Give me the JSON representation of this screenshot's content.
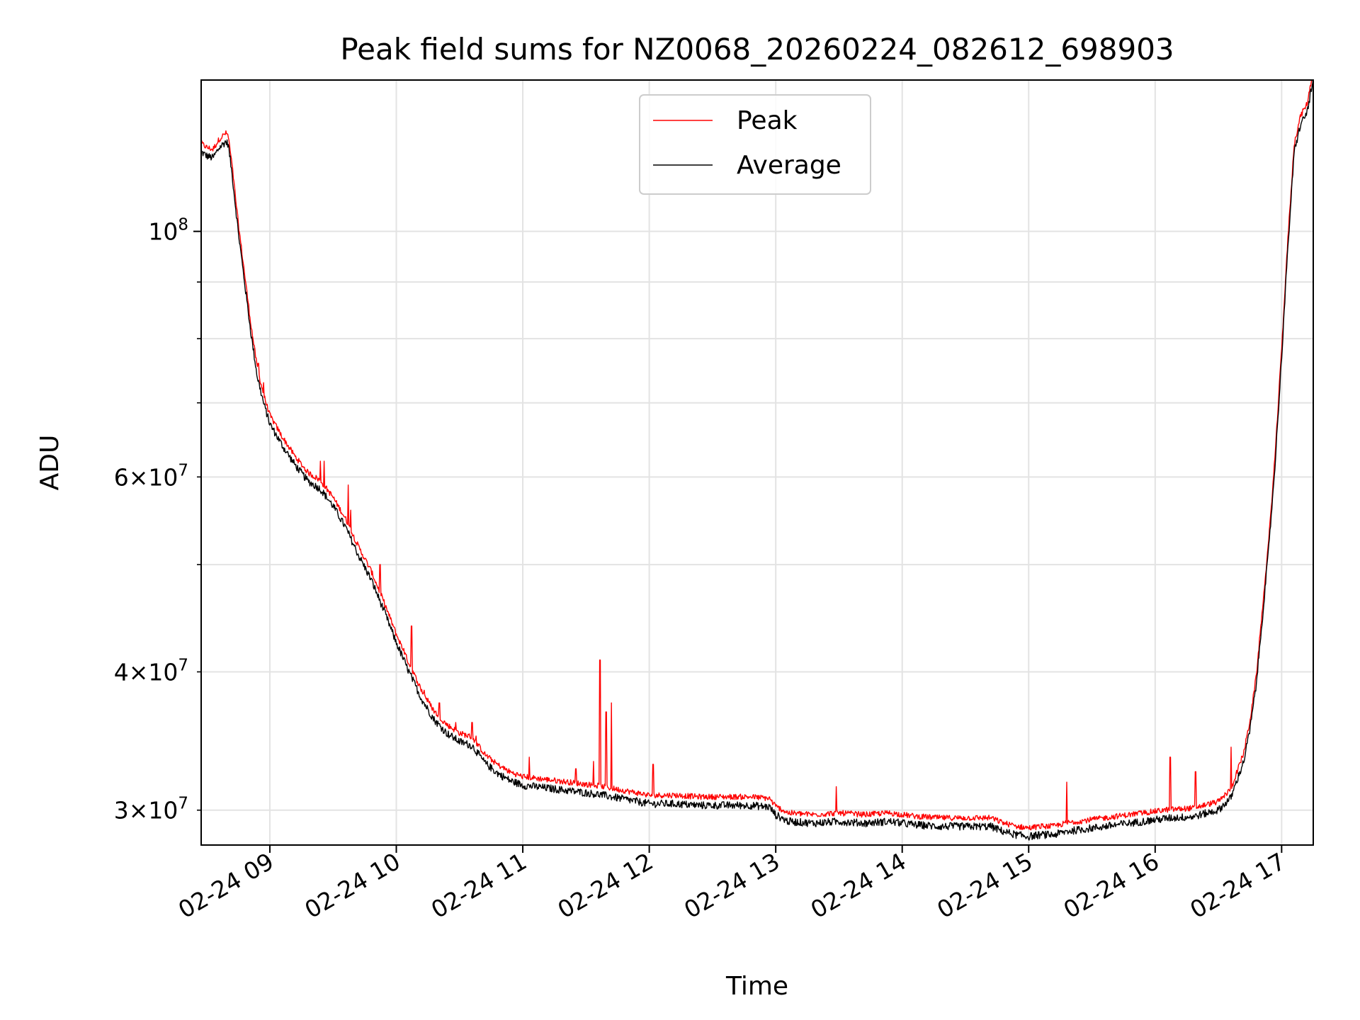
{
  "chart_data": {
    "type": "line",
    "title": "Peak field sums for NZ0068_20260224_082612_698903",
    "xlabel": "Time",
    "ylabel": "ADU",
    "yscale": "log",
    "ylim": [
      27900000,
      137000000
    ],
    "xlim_hours": [
      8.457,
      17.25
    ],
    "grid": true,
    "legend_location": "upper center",
    "x_ticks": [
      {
        "hour": 9,
        "label": "02-24 09"
      },
      {
        "hour": 10,
        "label": "02-24 10"
      },
      {
        "hour": 11,
        "label": "02-24 11"
      },
      {
        "hour": 12,
        "label": "02-24 12"
      },
      {
        "hour": 13,
        "label": "02-24 13"
      },
      {
        "hour": 14,
        "label": "02-24 14"
      },
      {
        "hour": 15,
        "label": "02-24 15"
      },
      {
        "hour": 16,
        "label": "02-24 16"
      },
      {
        "hour": 17,
        "label": "02-24 17"
      }
    ],
    "y_major_ticks": [
      {
        "value": 100000000,
        "base": "10",
        "exp": "8"
      }
    ],
    "y_minor_ticks": [
      {
        "value": 30000000,
        "mantissa": "3",
        "base": "10",
        "exp": "7",
        "labeled": true
      },
      {
        "value": 40000000,
        "mantissa": "4",
        "base": "10",
        "exp": "7",
        "labeled": true
      },
      {
        "value": 50000000,
        "mantissa": "",
        "base": "",
        "exp": "",
        "labeled": false
      },
      {
        "value": 60000000,
        "mantissa": "6",
        "base": "10",
        "exp": "7",
        "labeled": true
      },
      {
        "value": 70000000,
        "mantissa": "",
        "base": "",
        "exp": "",
        "labeled": false
      },
      {
        "value": 80000000,
        "mantissa": "",
        "base": "",
        "exp": "",
        "labeled": false
      },
      {
        "value": 90000000,
        "mantissa": "",
        "base": "",
        "exp": "",
        "labeled": false
      }
    ],
    "series": [
      {
        "name": "Peak",
        "color": "#ff0000",
        "role": "peak",
        "spikes": [
          [
            8.91,
            76000000
          ],
          [
            8.95,
            73000000
          ],
          [
            9.4,
            62000000
          ],
          [
            9.43,
            62000000
          ],
          [
            9.62,
            59000000
          ],
          [
            9.64,
            56000000
          ],
          [
            9.87,
            50000000
          ],
          [
            10.06,
            42000000
          ],
          [
            10.12,
            44000000
          ],
          [
            10.22,
            38500000
          ],
          [
            10.34,
            37500000
          ],
          [
            10.47,
            36000000
          ],
          [
            10.6,
            36000000
          ],
          [
            10.63,
            35000000
          ],
          [
            10.71,
            33000000
          ],
          [
            11.05,
            33500000
          ],
          [
            11.42,
            32700000
          ],
          [
            11.56,
            33200000
          ],
          [
            11.61,
            41000000
          ],
          [
            11.66,
            36800000
          ],
          [
            11.7,
            37500000
          ],
          [
            12.03,
            33000000
          ],
          [
            13.48,
            31500000
          ],
          [
            14.72,
            29500000
          ],
          [
            15.3,
            31800000
          ],
          [
            16.12,
            33500000
          ],
          [
            16.32,
            32500000
          ],
          [
            16.6,
            34200000
          ]
        ]
      },
      {
        "name": "Average",
        "color": "#000000",
        "role": "average",
        "points": [
          [
            8.457,
            118000000
          ],
          [
            8.5,
            117000000
          ],
          [
            8.55,
            116500000
          ],
          [
            8.6,
            119000000
          ],
          [
            8.65,
            120500000
          ],
          [
            8.67,
            120000000
          ],
          [
            8.7,
            113000000
          ],
          [
            8.75,
            100000000
          ],
          [
            8.8,
            90000000
          ],
          [
            8.85,
            81000000
          ],
          [
            8.9,
            74000000
          ],
          [
            8.95,
            70000000
          ],
          [
            9.0,
            67000000
          ],
          [
            9.1,
            64000000
          ],
          [
            9.2,
            61500000
          ],
          [
            9.3,
            59500000
          ],
          [
            9.4,
            58500000
          ],
          [
            9.5,
            56500000
          ],
          [
            9.6,
            54000000
          ],
          [
            9.7,
            51000000
          ],
          [
            9.8,
            48500000
          ],
          [
            9.9,
            45500000
          ],
          [
            10.0,
            42500000
          ],
          [
            10.1,
            40000000
          ],
          [
            10.2,
            37800000
          ],
          [
            10.3,
            36200000
          ],
          [
            10.4,
            35200000
          ],
          [
            10.5,
            34600000
          ],
          [
            10.6,
            34300000
          ],
          [
            10.7,
            33100000
          ],
          [
            10.8,
            32400000
          ],
          [
            10.9,
            31900000
          ],
          [
            11.0,
            31600000
          ],
          [
            11.2,
            31400000
          ],
          [
            11.4,
            31200000
          ],
          [
            11.6,
            31000000
          ],
          [
            11.8,
            30700000
          ],
          [
            12.0,
            30400000
          ],
          [
            12.2,
            30400000
          ],
          [
            12.4,
            30300000
          ],
          [
            12.6,
            30300000
          ],
          [
            12.8,
            30300000
          ],
          [
            12.95,
            30200000
          ],
          [
            13.0,
            29700000
          ],
          [
            13.1,
            29300000
          ],
          [
            13.3,
            29200000
          ],
          [
            13.5,
            29300000
          ],
          [
            13.7,
            29200000
          ],
          [
            13.9,
            29300000
          ],
          [
            14.1,
            29100000
          ],
          [
            14.3,
            29000000
          ],
          [
            14.5,
            29000000
          ],
          [
            14.7,
            29000000
          ],
          [
            14.8,
            28700000
          ],
          [
            14.9,
            28500000
          ],
          [
            15.0,
            28400000
          ],
          [
            15.1,
            28500000
          ],
          [
            15.2,
            28500000
          ],
          [
            15.3,
            28700000
          ],
          [
            15.5,
            28900000
          ],
          [
            15.7,
            29100000
          ],
          [
            15.9,
            29300000
          ],
          [
            16.1,
            29500000
          ],
          [
            16.3,
            29600000
          ],
          [
            16.5,
            30000000
          ],
          [
            16.6,
            30800000
          ],
          [
            16.65,
            32000000
          ],
          [
            16.7,
            33200000
          ],
          [
            16.75,
            35500000
          ],
          [
            16.8,
            39000000
          ],
          [
            16.85,
            45000000
          ],
          [
            16.9,
            52000000
          ],
          [
            16.95,
            62000000
          ],
          [
            17.0,
            77000000
          ],
          [
            17.05,
            97000000
          ],
          [
            17.1,
            118000000
          ],
          [
            17.15,
            125000000
          ],
          [
            17.2,
            128000000
          ],
          [
            17.25,
            137000000
          ]
        ]
      }
    ]
  }
}
